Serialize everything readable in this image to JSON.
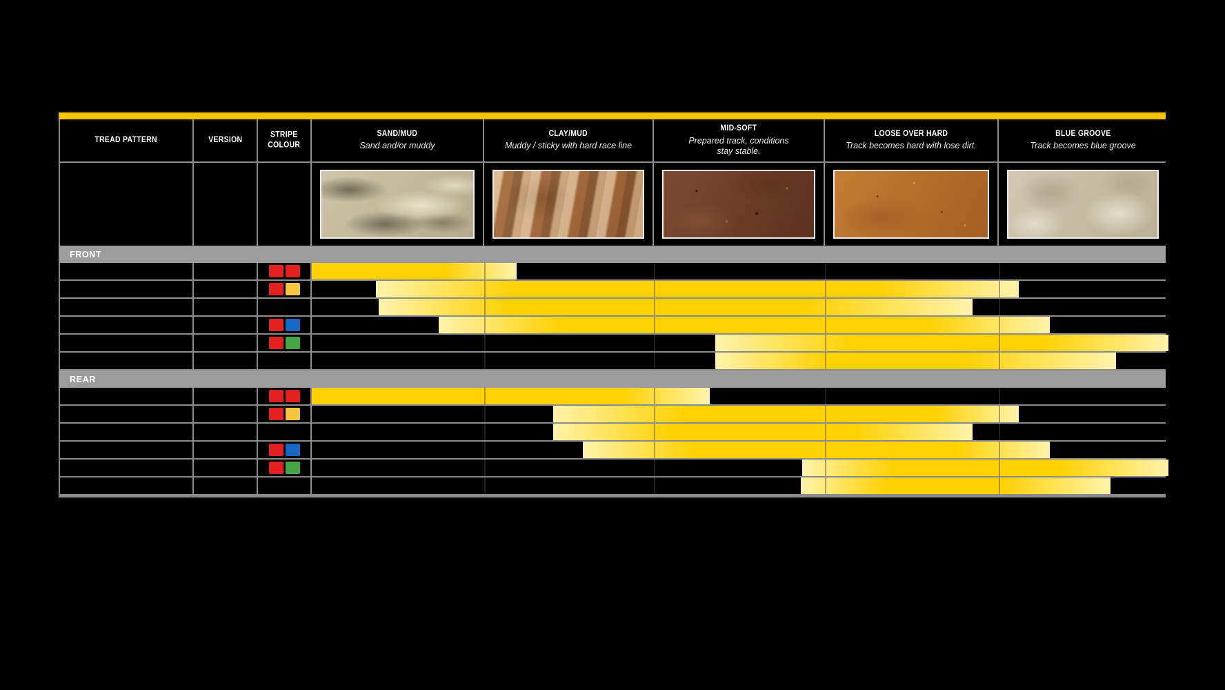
{
  "page": {
    "background": "#000000"
  },
  "table": {
    "top_bar_color": "#f7c600",
    "label_columns": [
      {
        "label": "TREAD PATTERN"
      },
      {
        "label": "VERSION"
      },
      {
        "label": "STRIPE\nCOLOUR"
      }
    ],
    "terrains": [
      {
        "label": "SAND/MUD",
        "subtitle": "Sand and/or muddy",
        "photo": "sand-mud-photo",
        "texture": "tex-sand"
      },
      {
        "label": "CLAY/MUD",
        "subtitle": "Muddy / sticky with hard race line",
        "photo": "clay-mud-photo",
        "texture": "tex-clay"
      },
      {
        "label": "MID-SOFT",
        "subtitle": "Prepared track, conditions\nstay stable.",
        "photo": "mid-soft-photo",
        "texture": "tex-midsoft"
      },
      {
        "label": "LOOSE OVER HARD",
        "subtitle": "Track becomes hard with lose dirt.",
        "photo": "loose-over-hard-photo",
        "texture": "tex-loose"
      },
      {
        "label": "BLUE GROOVE",
        "subtitle": "Track becomes blue groove",
        "photo": "blue-groove-photo",
        "texture": "tex-bluegroove"
      }
    ],
    "sections": [
      {
        "label": "FRONT",
        "rows": [
          {
            "stripes": [
              "red",
              "red"
            ],
            "bar": {
              "start": 363,
              "end": 660,
              "solid_from": 0.0,
              "solid_to": 0.65
            }
          },
          {
            "stripes": [
              "red",
              "yellow"
            ],
            "bar": {
              "start": 456,
              "end": 1388,
              "solid_from": 0.22,
              "solid_to": 0.78
            }
          },
          {
            "stripes": [],
            "bar": {
              "start": 460,
              "end": 1321,
              "solid_from": 0.22,
              "solid_to": 0.72
            }
          },
          {
            "stripes": [
              "red",
              "blue"
            ],
            "bar": {
              "start": 547,
              "end": 1433,
              "solid_from": 0.2,
              "solid_to": 0.8
            }
          },
          {
            "stripes": [
              "red",
              "green"
            ],
            "bar": {
              "start": 948,
              "end": 1605,
              "solid_from": 0.3,
              "solid_to": 0.72
            }
          },
          {
            "stripes": [],
            "bar": {
              "start": 948,
              "end": 1529,
              "solid_from": 0.28,
              "solid_to": 0.62
            }
          }
        ]
      },
      {
        "label": "REAR",
        "rows": [
          {
            "stripes": [
              "red",
              "red"
            ],
            "bar": {
              "start": 363,
              "end": 940,
              "solid_from": 0.0,
              "solid_to": 0.78
            }
          },
          {
            "stripes": [
              "red",
              "yellow"
            ],
            "bar": {
              "start": 713,
              "end": 1388,
              "solid_from": 0.28,
              "solid_to": 0.82
            }
          },
          {
            "stripes": [],
            "bar": {
              "start": 713,
              "end": 1321,
              "solid_from": 0.28,
              "solid_to": 0.72
            }
          },
          {
            "stripes": [
              "red",
              "blue"
            ],
            "bar": {
              "start": 756,
              "end": 1433,
              "solid_from": 0.24,
              "solid_to": 0.8
            }
          },
          {
            "stripes": [
              "red",
              "green"
            ],
            "bar": {
              "start": 1074,
              "end": 1605,
              "solid_from": 0.25,
              "solid_to": 0.7
            }
          },
          {
            "stripes": [],
            "bar": {
              "start": 1072,
              "end": 1521,
              "solid_from": 0.28,
              "solid_to": 0.65
            }
          }
        ]
      }
    ]
  },
  "colors": {
    "bar_solid": "#ffd103",
    "bar_pale": "#fff3ab",
    "grid": "#8c8c8c",
    "band": "#9c9c9c",
    "stripe_red": "#e2201f",
    "stripe_yellow": "#f6c63d",
    "stripe_blue": "#1767c5",
    "stripe_green": "#43a747"
  },
  "chart_data": {
    "type": "table",
    "title": "Tyre application range chart",
    "terrain_axis": [
      "SAND/MUD",
      "CLAY/MUD",
      "MID-SOFT",
      "LOOSE OVER HARD",
      "BLUE GROOVE"
    ],
    "terrain_descriptions": [
      "Sand and/or muddy",
      "Muddy / sticky with hard race line",
      "Prepared track, conditions stay stable.",
      "Track becomes hard with lose dirt.",
      "Track becomes blue groove"
    ],
    "axis_units": "terrain columns 0-5 (0 = start of SAND/MUD, 5 = end of BLUE GROOVE)",
    "sections": [
      {
        "name": "FRONT",
        "rows": [
          {
            "stripe_colours": [
              "red",
              "red"
            ],
            "range": [
              0.0,
              1.2
            ]
          },
          {
            "stripe_colours": [
              "red",
              "yellow"
            ],
            "range": [
              0.37,
              4.13
            ]
          },
          {
            "stripe_colours": [],
            "range": [
              0.39,
              3.86
            ]
          },
          {
            "stripe_colours": [
              "red",
              "blue"
            ],
            "range": [
              0.74,
              4.31
            ]
          },
          {
            "stripe_colours": [
              "red",
              "green"
            ],
            "range": [
              2.36,
              5.0
            ]
          },
          {
            "stripe_colours": [],
            "range": [
              2.36,
              4.69
            ]
          }
        ]
      },
      {
        "name": "REAR",
        "rows": [
          {
            "stripe_colours": [
              "red",
              "red"
            ],
            "range": [
              0.0,
              2.32
            ]
          },
          {
            "stripe_colours": [
              "red",
              "yellow"
            ],
            "range": [
              1.41,
              4.13
            ]
          },
          {
            "stripe_colours": [],
            "range": [
              1.41,
              3.86
            ]
          },
          {
            "stripe_colours": [
              "red",
              "blue"
            ],
            "range": [
              1.58,
              4.31
            ]
          },
          {
            "stripe_colours": [
              "red",
              "green"
            ],
            "range": [
              2.86,
              5.0
            ]
          },
          {
            "stripe_colours": [],
            "range": [
              2.85,
              4.66
            ]
          }
        ]
      }
    ]
  }
}
